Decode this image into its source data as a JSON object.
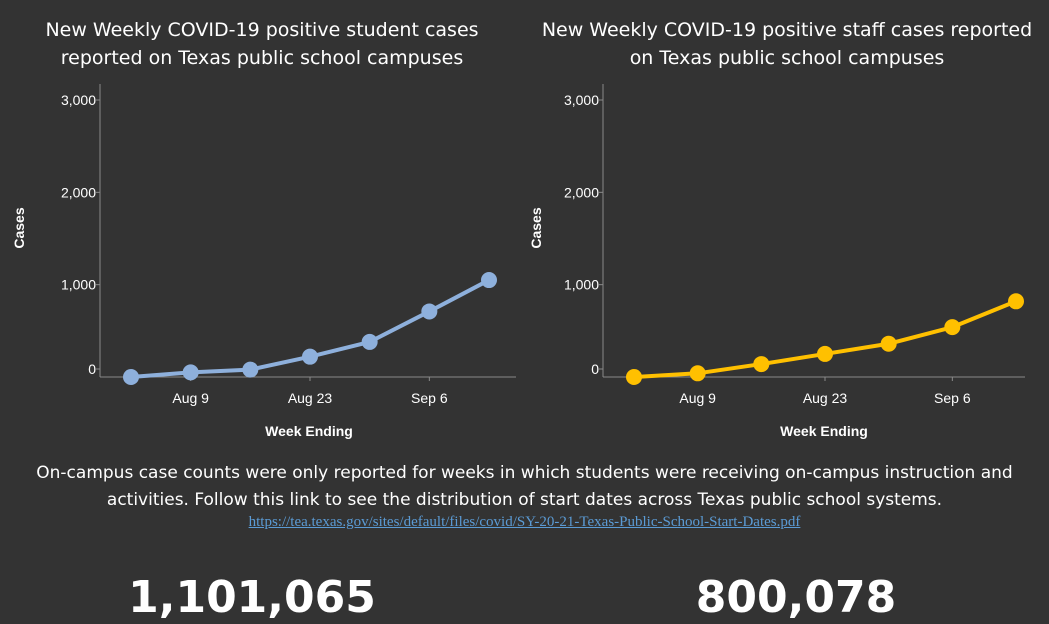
{
  "chart_data": [
    {
      "type": "line",
      "title": "New Weekly COVID-19 positive student cases reported on Texas public school campuses",
      "title_lines": [
        "New Weekly COVID-19 positive student cases",
        "reported on Texas public school campuses"
      ],
      "xlabel": "Week Ending",
      "ylabel": "Cases",
      "x": [
        "2020-08-02",
        "2020-08-09",
        "2020-08-16",
        "2020-08-23",
        "2020-08-30",
        "2020-09-06",
        "2020-09-13"
      ],
      "x_tick_labels": [
        "Aug 9",
        "Aug 23",
        "Sep 6"
      ],
      "x_tick_dates": [
        "2020-08-09",
        "2020-08-23",
        "2020-09-06"
      ],
      "y_ticks": [
        "3,000",
        "2,000",
        "1,000",
        "0"
      ],
      "y_tick_values": [
        3000,
        2000,
        1000,
        0
      ],
      "ylim": [
        0,
        3000
      ],
      "grid": false,
      "color": "#8eb0dc",
      "series": [
        {
          "values": [
            0,
            50,
            80,
            220,
            380,
            710,
            1050
          ]
        }
      ]
    },
    {
      "type": "line",
      "title": "New Weekly COVID-19 positive staff cases reported on Texas public school campuses",
      "title_lines": [
        "New Weekly COVID-19 positive staff cases reported",
        "on Texas public school campuses"
      ],
      "xlabel": "Week Ending",
      "ylabel": "Cases",
      "x": [
        "2020-08-02",
        "2020-08-09",
        "2020-08-16",
        "2020-08-23",
        "2020-08-30",
        "2020-09-06",
        "2020-09-13"
      ],
      "x_tick_labels": [
        "Aug 9",
        "Aug 23",
        "Sep 6"
      ],
      "x_tick_dates": [
        "2020-08-09",
        "2020-08-23",
        "2020-09-06"
      ],
      "y_ticks": [
        "3,000",
        "2,000",
        "1,000",
        "0"
      ],
      "y_tick_values": [
        3000,
        2000,
        1000,
        0
      ],
      "ylim": [
        0,
        3000
      ],
      "grid": false,
      "color": "#ffc000",
      "series": [
        {
          "values": [
            0,
            40,
            140,
            250,
            360,
            540,
            820
          ]
        }
      ]
    }
  ],
  "note": {
    "lines": [
      "On-campus case counts were only reported for weeks in which students were receiving on-campus instruction and",
      "activities. Follow this link to see the distribution of start dates across Texas public school systems."
    ],
    "link": "https://tea.texas.gov/sites/default/files/covid/SY-20-21-Texas-Public-School-Start-Dates.pdf"
  },
  "totals": {
    "students": "1,101,065",
    "staff": "800,078"
  }
}
